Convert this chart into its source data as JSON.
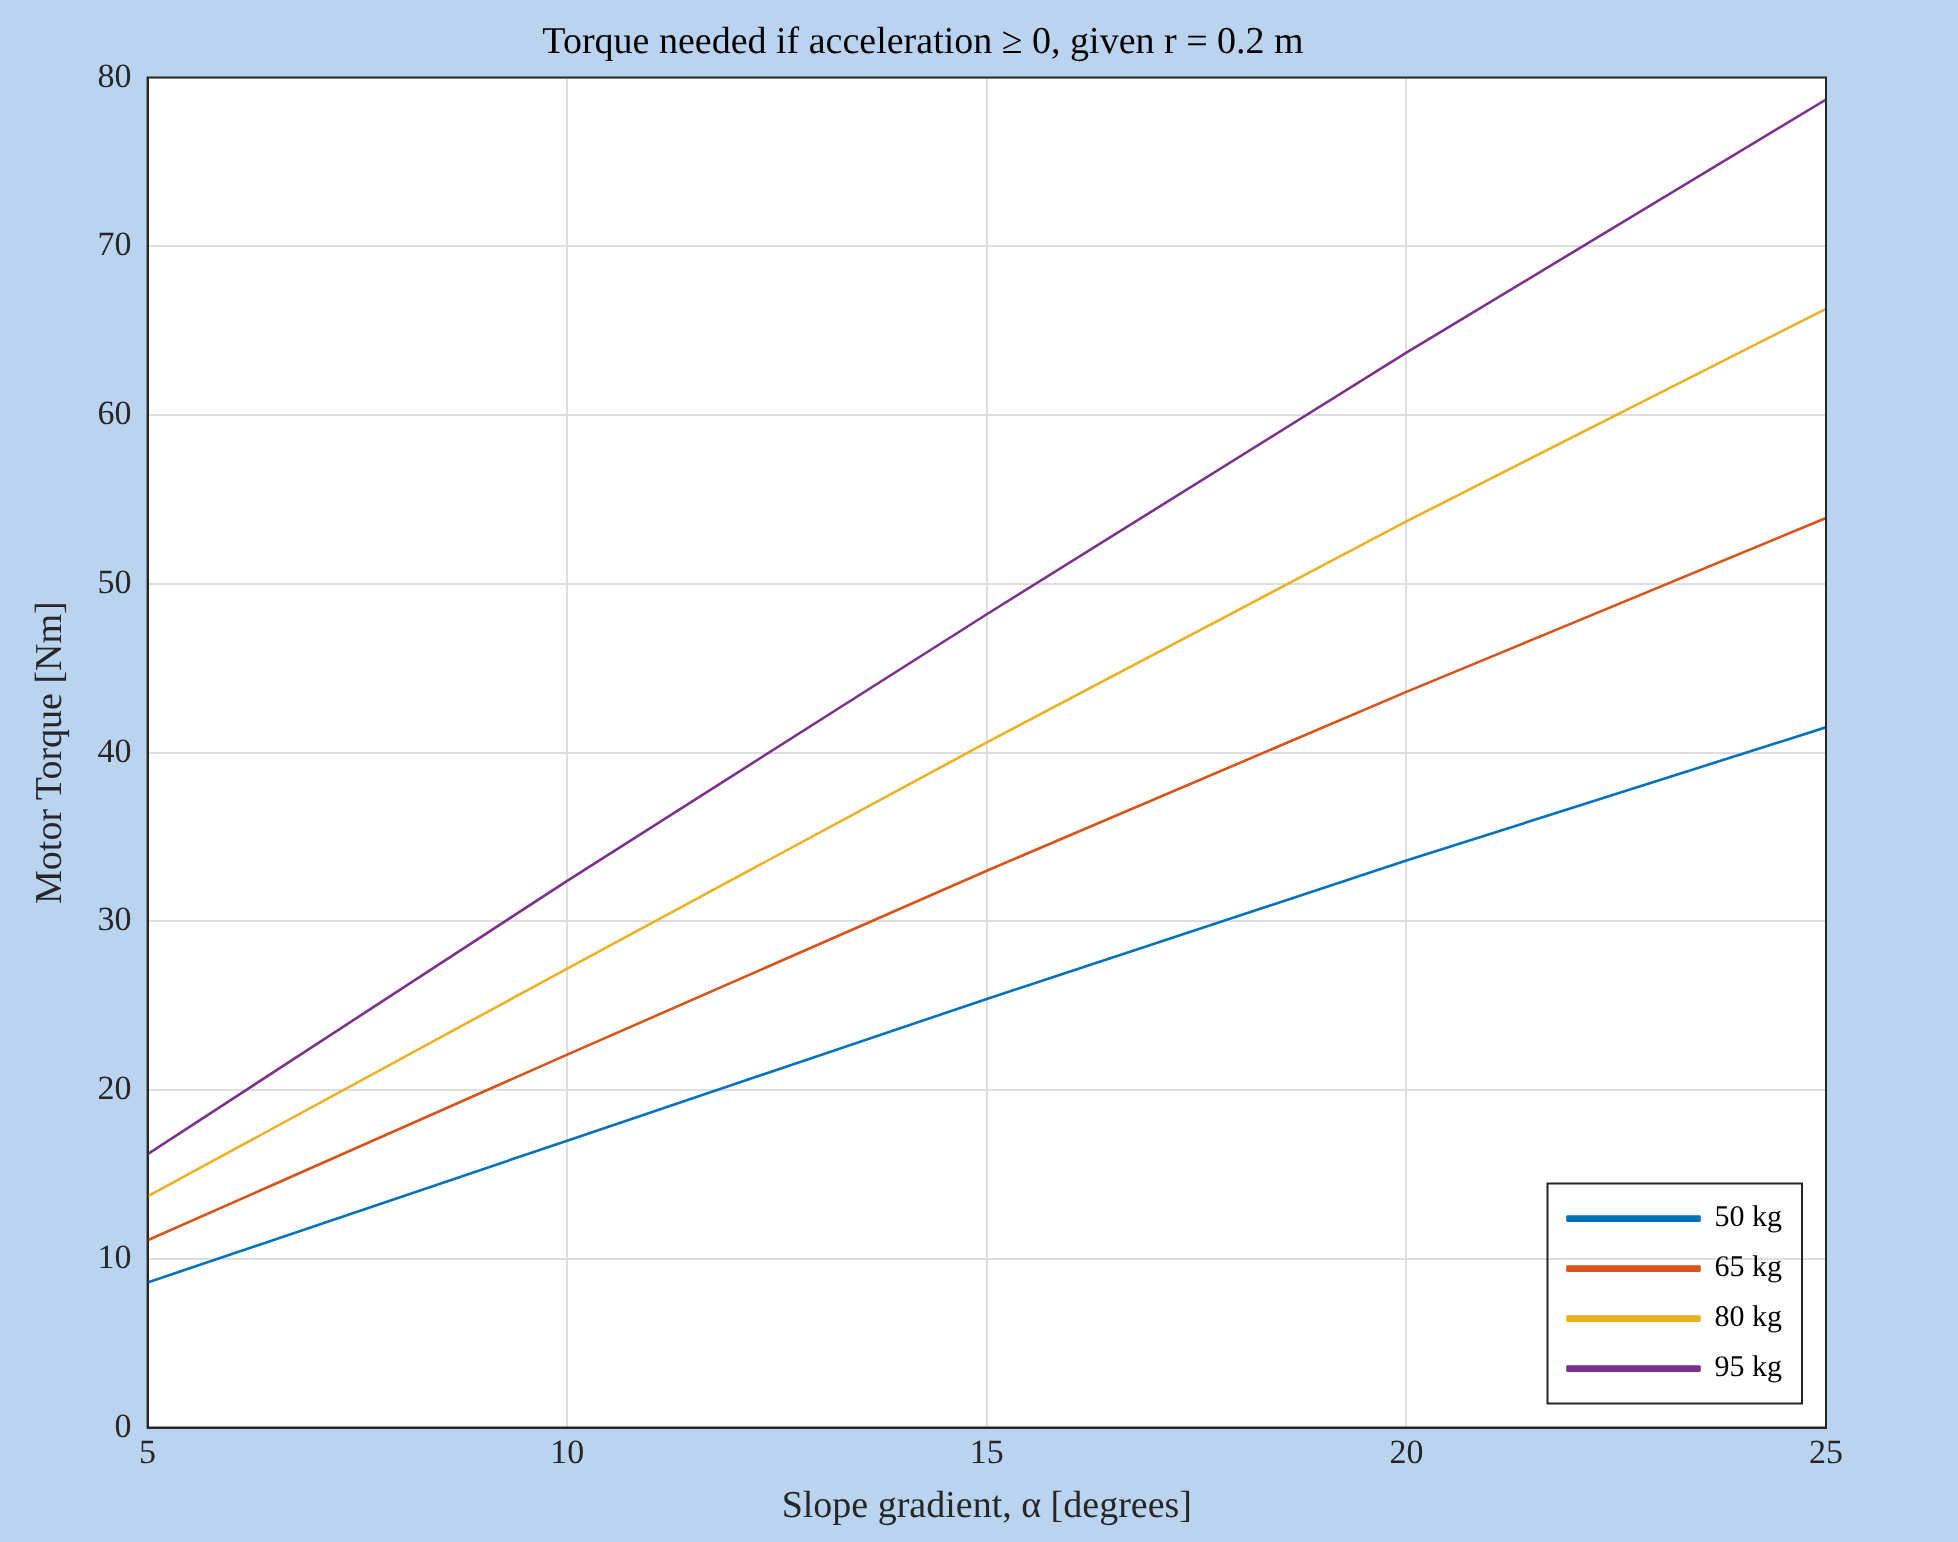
{
  "chart_data": {
    "type": "line",
    "title": "Torque needed if acceleration ≥ 0, given r = 0.2 m",
    "xlabel": "Slope gradient, α [degrees]",
    "ylabel": "Motor Torque [Nm]",
    "x": [
      5,
      10,
      15,
      20,
      25
    ],
    "series": [
      {
        "name": "50 kg",
        "color": "#0072bd",
        "values": [
          8.6,
          17.0,
          25.4,
          33.6,
          41.5
        ]
      },
      {
        "name": "65 kg",
        "color": "#d95319",
        "values": [
          11.1,
          22.1,
          33.0,
          43.6,
          53.9
        ]
      },
      {
        "name": "80 kg",
        "color": "#edb120",
        "values": [
          13.7,
          27.2,
          40.6,
          53.7,
          66.3
        ]
      },
      {
        "name": "95 kg",
        "color": "#7e2f8e",
        "values": [
          16.2,
          32.4,
          48.2,
          63.7,
          78.7
        ]
      }
    ],
    "xlim": [
      5,
      25
    ],
    "xticks": [
      5,
      10,
      15,
      20,
      25
    ],
    "ylim": [
      0,
      80
    ],
    "yticks": [
      0,
      10,
      20,
      30,
      40,
      50,
      60,
      70,
      80
    ],
    "grid": true,
    "legend": "bottom right",
    "marker": "none",
    "line_style": "solid"
  }
}
